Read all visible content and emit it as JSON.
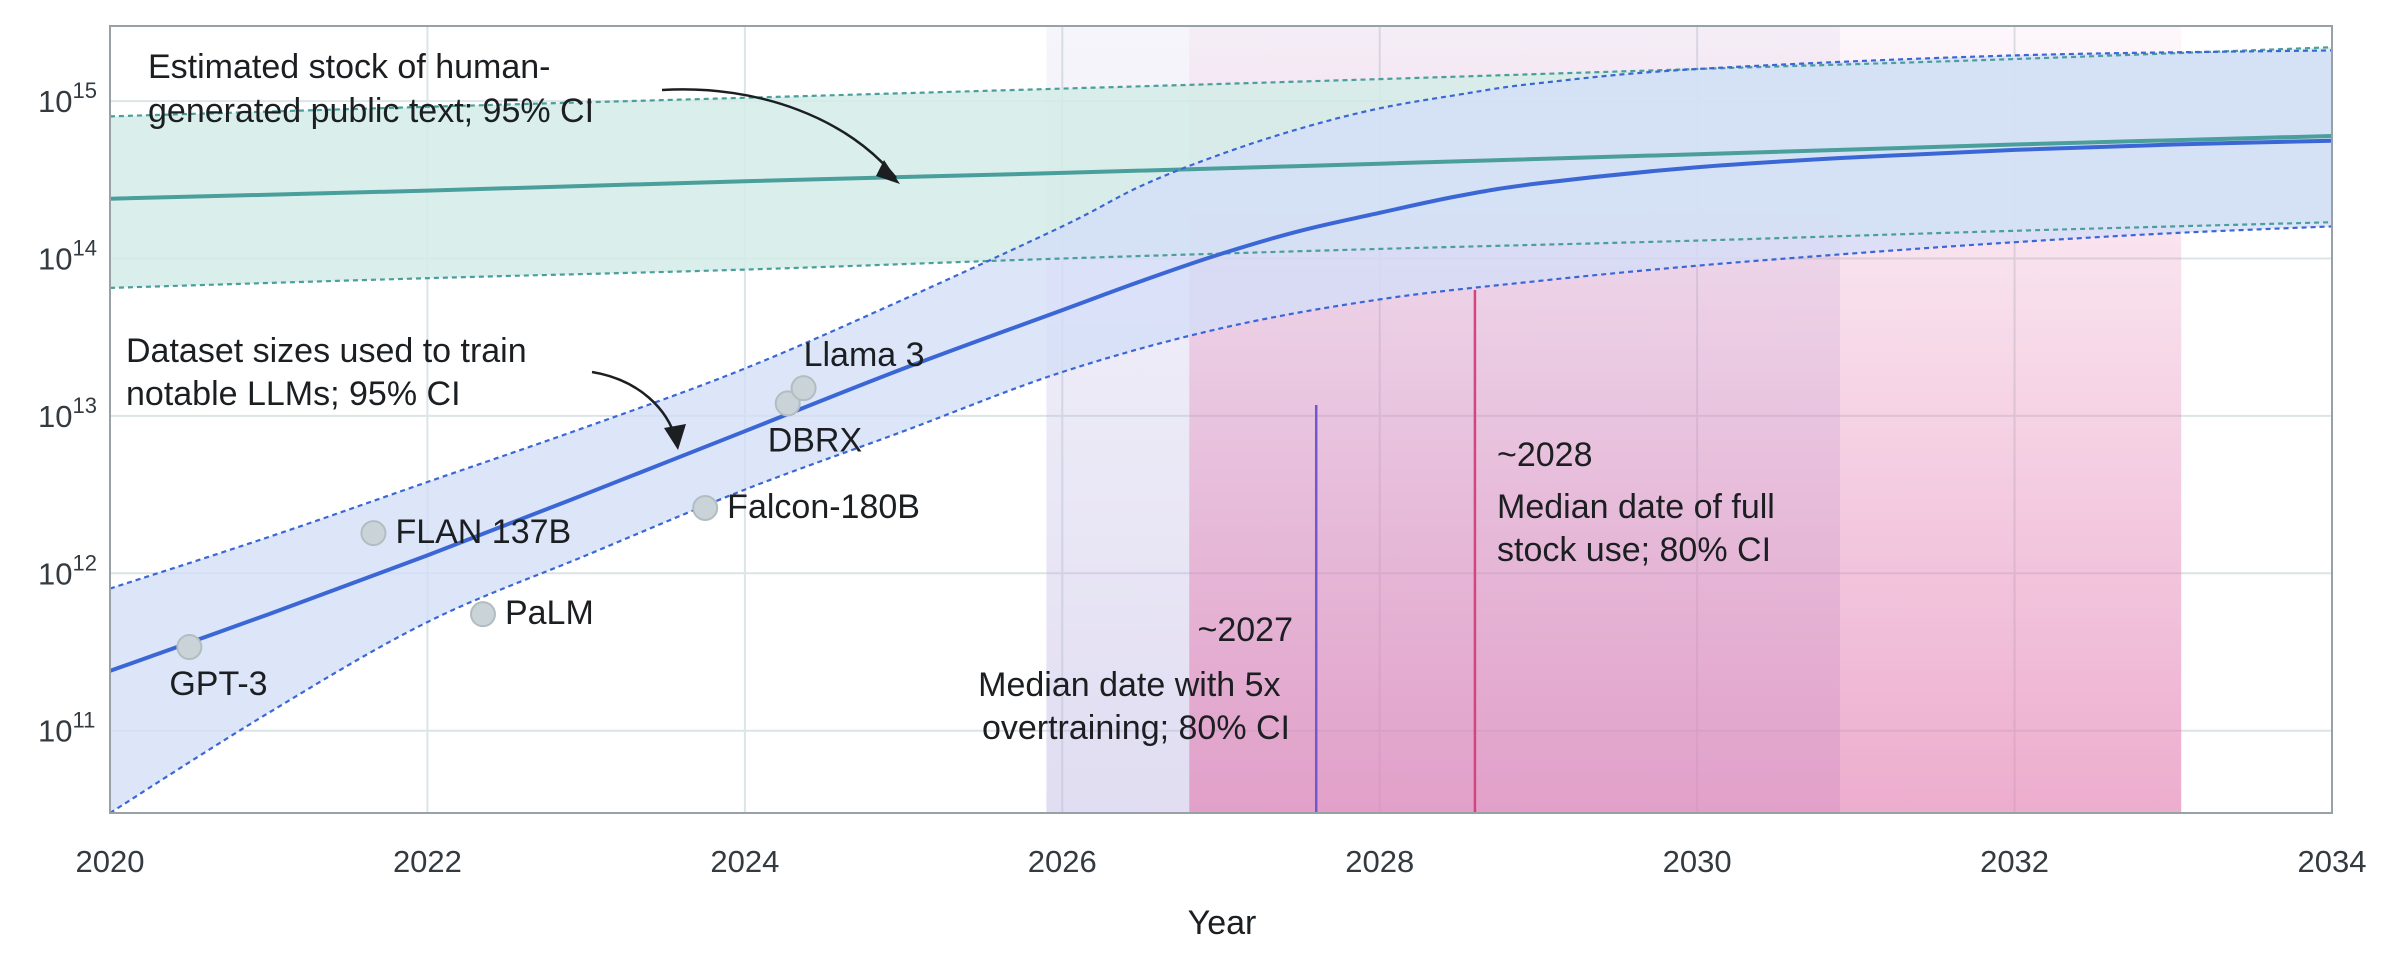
{
  "chart_data": {
    "type": "line",
    "xlabel": "Year",
    "ylabel": "",
    "x_ticks": [
      "2020",
      "2022",
      "2024",
      "2026",
      "2028",
      "2030",
      "2032",
      "2034"
    ],
    "xlim": [
      2020,
      2034
    ],
    "y_scale": "log",
    "ylim": [
      30000000000.0,
      3000000000000000.0
    ],
    "y_ticks": [
      {
        "value": 100000000000.0,
        "base": "10",
        "exp": "11"
      },
      {
        "value": 1000000000000.0,
        "base": "10",
        "exp": "12"
      },
      {
        "value": 10000000000000.0,
        "base": "10",
        "exp": "13"
      },
      {
        "value": 100000000000000.0,
        "base": "10",
        "exp": "14"
      },
      {
        "value": 1000000000000000.0,
        "base": "10",
        "exp": "15"
      }
    ],
    "grid": true,
    "series": [
      {
        "key": "stock",
        "color": "#4a9e9b",
        "band_color": "#d3ece8",
        "median": {
          "x": [
            2020,
            2022,
            2024,
            2026,
            2028,
            2030,
            2032,
            2034
          ],
          "y": [
            240000000000000.0,
            270000000000000.0,
            310000000000000.0,
            350000000000000.0,
            400000000000000.0,
            460000000000000.0,
            530000000000000.0,
            600000000000000.0
          ]
        },
        "upper": {
          "x": [
            2020,
            2022,
            2024,
            2026,
            2028,
            2030,
            2032,
            2034
          ],
          "y": [
            800000000000000.0,
            920000000000000.0,
            1050000000000000.0,
            1200000000000000.0,
            1380000000000000.0,
            1600000000000000.0,
            1850000000000000.0,
            2200000000000000.0
          ]
        },
        "lower": {
          "x": [
            2020,
            2022,
            2024,
            2026,
            2028,
            2030,
            2032,
            2034
          ],
          "y": [
            65000000000000.0,
            75000000000000.0,
            85000000000000.0,
            100000000000000.0,
            115000000000000.0,
            130000000000000.0,
            150000000000000.0,
            170000000000000.0
          ]
        }
      },
      {
        "key": "datasets",
        "color": "#3b67d6",
        "band_color": "#d3def7",
        "median": {
          "x": [
            2020,
            2021,
            2022,
            2023,
            2024,
            2025,
            2026,
            2026.5,
            2027,
            2027.5,
            2028,
            2028.5,
            2029,
            2030,
            2031,
            2032,
            2033,
            2034
          ],
          "y": [
            240000000000.0,
            550000000000.0,
            1300000000000.0,
            3200000000000.0,
            8000000000000.0,
            20000000000000.0,
            47000000000000.0,
            72000000000000.0,
            107000000000000.0,
            150000000000000.0,
            195000000000000.0,
            250000000000000.0,
            300000000000000.0,
            380000000000000.0,
            440000000000000.0,
            490000000000000.0,
            530000000000000.0,
            560000000000000.0
          ]
        },
        "upper": {
          "x": [
            2020,
            2021,
            2022,
            2023,
            2024,
            2025,
            2026,
            2026.5,
            2027,
            2027.5,
            2028,
            2028.5,
            2029,
            2030,
            2032,
            2034
          ],
          "y": [
            800000000000.0,
            1700000000000.0,
            3800000000000.0,
            8500000000000.0,
            20000000000000.0,
            55000000000000.0,
            160000000000000.0,
            290000000000000.0,
            460000000000000.0,
            670000000000000.0,
            900000000000000.0,
            1100000000000000.0,
            1300000000000000.0,
            1600000000000000.0,
            1950000000000000.0,
            2100000000000000.0
          ]
        },
        "lower": {
          "x": [
            2020,
            2021,
            2022,
            2023,
            2024,
            2025,
            2026,
            2027,
            2028,
            2029,
            2030,
            2031,
            2032,
            2033,
            2034
          ],
          "y": [
            30000000000.0,
            130000000000.0,
            490000000000.0,
            1300000000000.0,
            3400000000000.0,
            8000000000000.0,
            19000000000000.0,
            36000000000000.0,
            55000000000000.0,
            72000000000000.0,
            90000000000000.0,
            108000000000000.0,
            127000000000000.0,
            145000000000000.0,
            160000000000000.0
          ]
        }
      }
    ],
    "models": [
      {
        "name": "GPT-3",
        "x": 2020.5,
        "y": 340000000000.0,
        "label_pos": "below"
      },
      {
        "name": "FLAN 137B",
        "x": 2021.66,
        "y": 1800000000000.0,
        "label_pos": "right"
      },
      {
        "name": "PaLM",
        "x": 2022.35,
        "y": 550000000000.0,
        "label_pos": "right"
      },
      {
        "name": "Falcon-180B",
        "x": 2023.75,
        "y": 2600000000000.0,
        "label_pos": "right"
      },
      {
        "name": "DBRX",
        "x": 2024.27,
        "y": 12000000000000.0,
        "label_pos": "below"
      },
      {
        "name": "Llama 3",
        "x": 2024.37,
        "y": 15000000000000.0,
        "label_pos": "above-right"
      }
    ],
    "ci_regions": [
      {
        "key": "overtraining_ci",
        "x0": 2025.9,
        "x1": 2030.9,
        "color": "#b8aee0"
      },
      {
        "key": "full_stock_ci",
        "x0": 2026.8,
        "x1": 2033.05,
        "color": "#e27bb0"
      }
    ],
    "median_lines": [
      {
        "key": "overtraining_median",
        "x": 2027.6,
        "color": "#7258cf"
      },
      {
        "key": "full_stock_median",
        "x": 2028.6,
        "color": "#d2457f"
      }
    ],
    "annotations": {
      "stock_label": [
        "Estimated stock of human-",
        "generated public text; 95% CI"
      ],
      "dataset_label": [
        "Dataset sizes used to train",
        "notable LLMs; 95% CI"
      ],
      "overtraining_year": "~2027",
      "overtraining_desc": [
        "Median date with 5x",
        "overtraining; 80% CI"
      ],
      "full_stock_year": "~2028",
      "full_stock_desc": [
        "Median date of full",
        "stock use; 80% CI"
      ]
    },
    "colors": {
      "grid": "#dbe4e6",
      "frame": "#98a2a6",
      "overtraining_text": "#6a4fcb",
      "full_stock_text": "#d2457f",
      "marker_fill": "#c9d3d8",
      "marker_stroke": "#b2bdc2"
    }
  }
}
